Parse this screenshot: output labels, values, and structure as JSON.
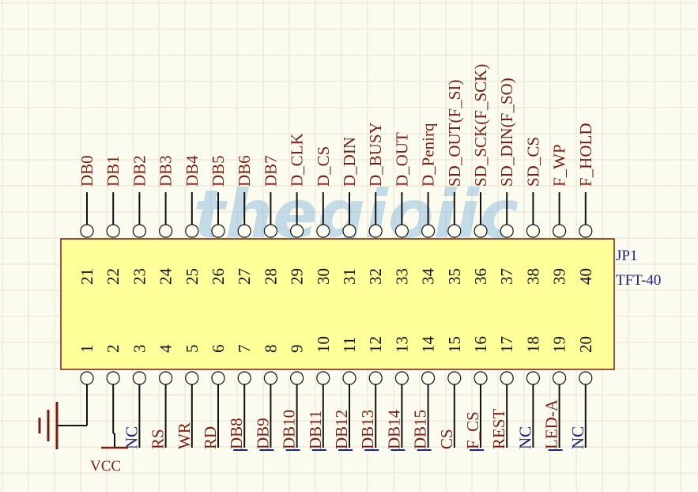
{
  "component": {
    "designator": "JP1",
    "part": "TFT-40",
    "body_color": "#ffff99",
    "outline_color": "#7a1e12",
    "text_color_ref": "#1a237e"
  },
  "colors": {
    "signal": "#7a1e12",
    "nc": "#1a237e",
    "wire": "#111111",
    "bus_underline": "#1a237e"
  },
  "top_pins": [
    {
      "num": "21",
      "name": "DB0"
    },
    {
      "num": "22",
      "name": "DB1"
    },
    {
      "num": "23",
      "name": "DB2"
    },
    {
      "num": "24",
      "name": "DB3"
    },
    {
      "num": "25",
      "name": "DB4"
    },
    {
      "num": "26",
      "name": "DB5"
    },
    {
      "num": "27",
      "name": "DB6"
    },
    {
      "num": "28",
      "name": "DB7"
    },
    {
      "num": "29",
      "name": "D_CLK"
    },
    {
      "num": "30",
      "name": "D_CS"
    },
    {
      "num": "31",
      "name": "D_DIN"
    },
    {
      "num": "32",
      "name": "D_BUSY"
    },
    {
      "num": "33",
      "name": "D_OUT"
    },
    {
      "num": "34",
      "name": "D_Penirq"
    },
    {
      "num": "35",
      "name": "SD_OUT(F_SI)"
    },
    {
      "num": "36",
      "name": "SD_SCK(F_SCK)"
    },
    {
      "num": "37",
      "name": "SD_DIN(F_SO)"
    },
    {
      "num": "38",
      "name": "SD_CS"
    },
    {
      "num": "39",
      "name": "F_WP"
    },
    {
      "num": "40",
      "name": "F_HOLD"
    }
  ],
  "bottom_pins": [
    {
      "num": "1",
      "name": "",
      "kind": "gnd"
    },
    {
      "num": "2",
      "name": "",
      "kind": "vcc"
    },
    {
      "num": "3",
      "name": "NC",
      "kind": "nc"
    },
    {
      "num": "4",
      "name": "RS",
      "kind": "sig"
    },
    {
      "num": "5",
      "name": "WR",
      "kind": "sig"
    },
    {
      "num": "6",
      "name": "RD",
      "kind": "sig"
    },
    {
      "num": "7",
      "name": "DB8",
      "kind": "bus"
    },
    {
      "num": "8",
      "name": "DB9",
      "kind": "bus"
    },
    {
      "num": "9",
      "name": "DB10",
      "kind": "bus"
    },
    {
      "num": "10",
      "name": "DB11",
      "kind": "bus"
    },
    {
      "num": "11",
      "name": "DB12",
      "kind": "bus"
    },
    {
      "num": "12",
      "name": "DB13",
      "kind": "bus"
    },
    {
      "num": "13",
      "name": "DB14",
      "kind": "bus"
    },
    {
      "num": "14",
      "name": "DB15",
      "kind": "bus"
    },
    {
      "num": "15",
      "name": "CS",
      "kind": "sig"
    },
    {
      "num": "16",
      "name": "F_CS",
      "kind": "bus"
    },
    {
      "num": "17",
      "name": "REST",
      "kind": "sig"
    },
    {
      "num": "18",
      "name": "NC",
      "kind": "nc"
    },
    {
      "num": "19",
      "name": "LED-A",
      "kind": "bus"
    },
    {
      "num": "20",
      "name": "NC",
      "kind": "nc"
    }
  ],
  "power": {
    "vcc_label": "VCC"
  },
  "watermark": {
    "text": "thegioiic"
  }
}
